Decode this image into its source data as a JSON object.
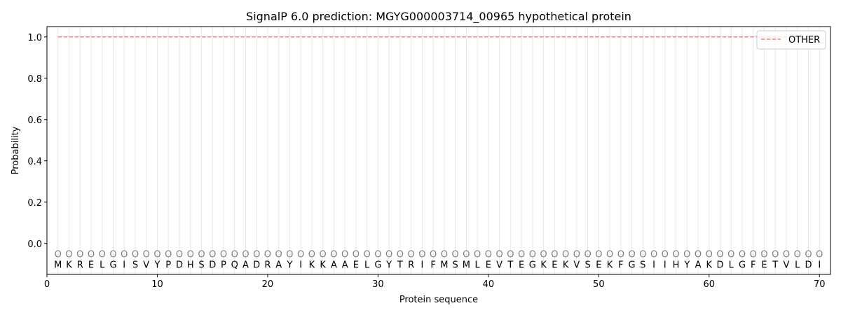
{
  "chart_data": {
    "type": "line",
    "title": "SignalP 6.0 prediction: MGYG000003714_00965 hypothetical protein",
    "xlabel": "Protein sequence",
    "ylabel": "Probability",
    "xlim": [
      0,
      71
    ],
    "ylim": [
      -0.15,
      1.05
    ],
    "xticks": [
      0,
      10,
      20,
      30,
      40,
      50,
      60,
      70
    ],
    "yticks": [
      0.0,
      0.2,
      0.4,
      0.6,
      0.8,
      1.0
    ],
    "ytick_labels": [
      "0.0",
      "0.2",
      "0.4",
      "0.6",
      "0.8",
      "1.0"
    ],
    "grid": "vertical lines at each residue",
    "legend_placement": "top-right",
    "sequence": [
      "M",
      "K",
      "R",
      "E",
      "L",
      "G",
      "I",
      "S",
      "V",
      "Y",
      "P",
      "D",
      "H",
      "S",
      "D",
      "P",
      "Q",
      "A",
      "D",
      "R",
      "A",
      "Y",
      "I",
      "K",
      "K",
      "A",
      "A",
      "E",
      "L",
      "G",
      "Y",
      "T",
      "R",
      "I",
      "F",
      "M",
      "S",
      "M",
      "L",
      "E",
      "V",
      "T",
      "E",
      "G",
      "K",
      "E",
      "K",
      "V",
      "S",
      "E",
      "K",
      "F",
      "G",
      "S",
      "I",
      "I",
      "H",
      "Y",
      "A",
      "K",
      "D",
      "L",
      "G",
      "F",
      "E",
      "T",
      "V",
      "L",
      "D",
      "I"
    ],
    "region_label": "O",
    "series": [
      {
        "name": "OTHER",
        "color": "#f08080",
        "style": "dashed",
        "x_start": 1,
        "x_end": 70,
        "value": 1.0
      }
    ]
  }
}
